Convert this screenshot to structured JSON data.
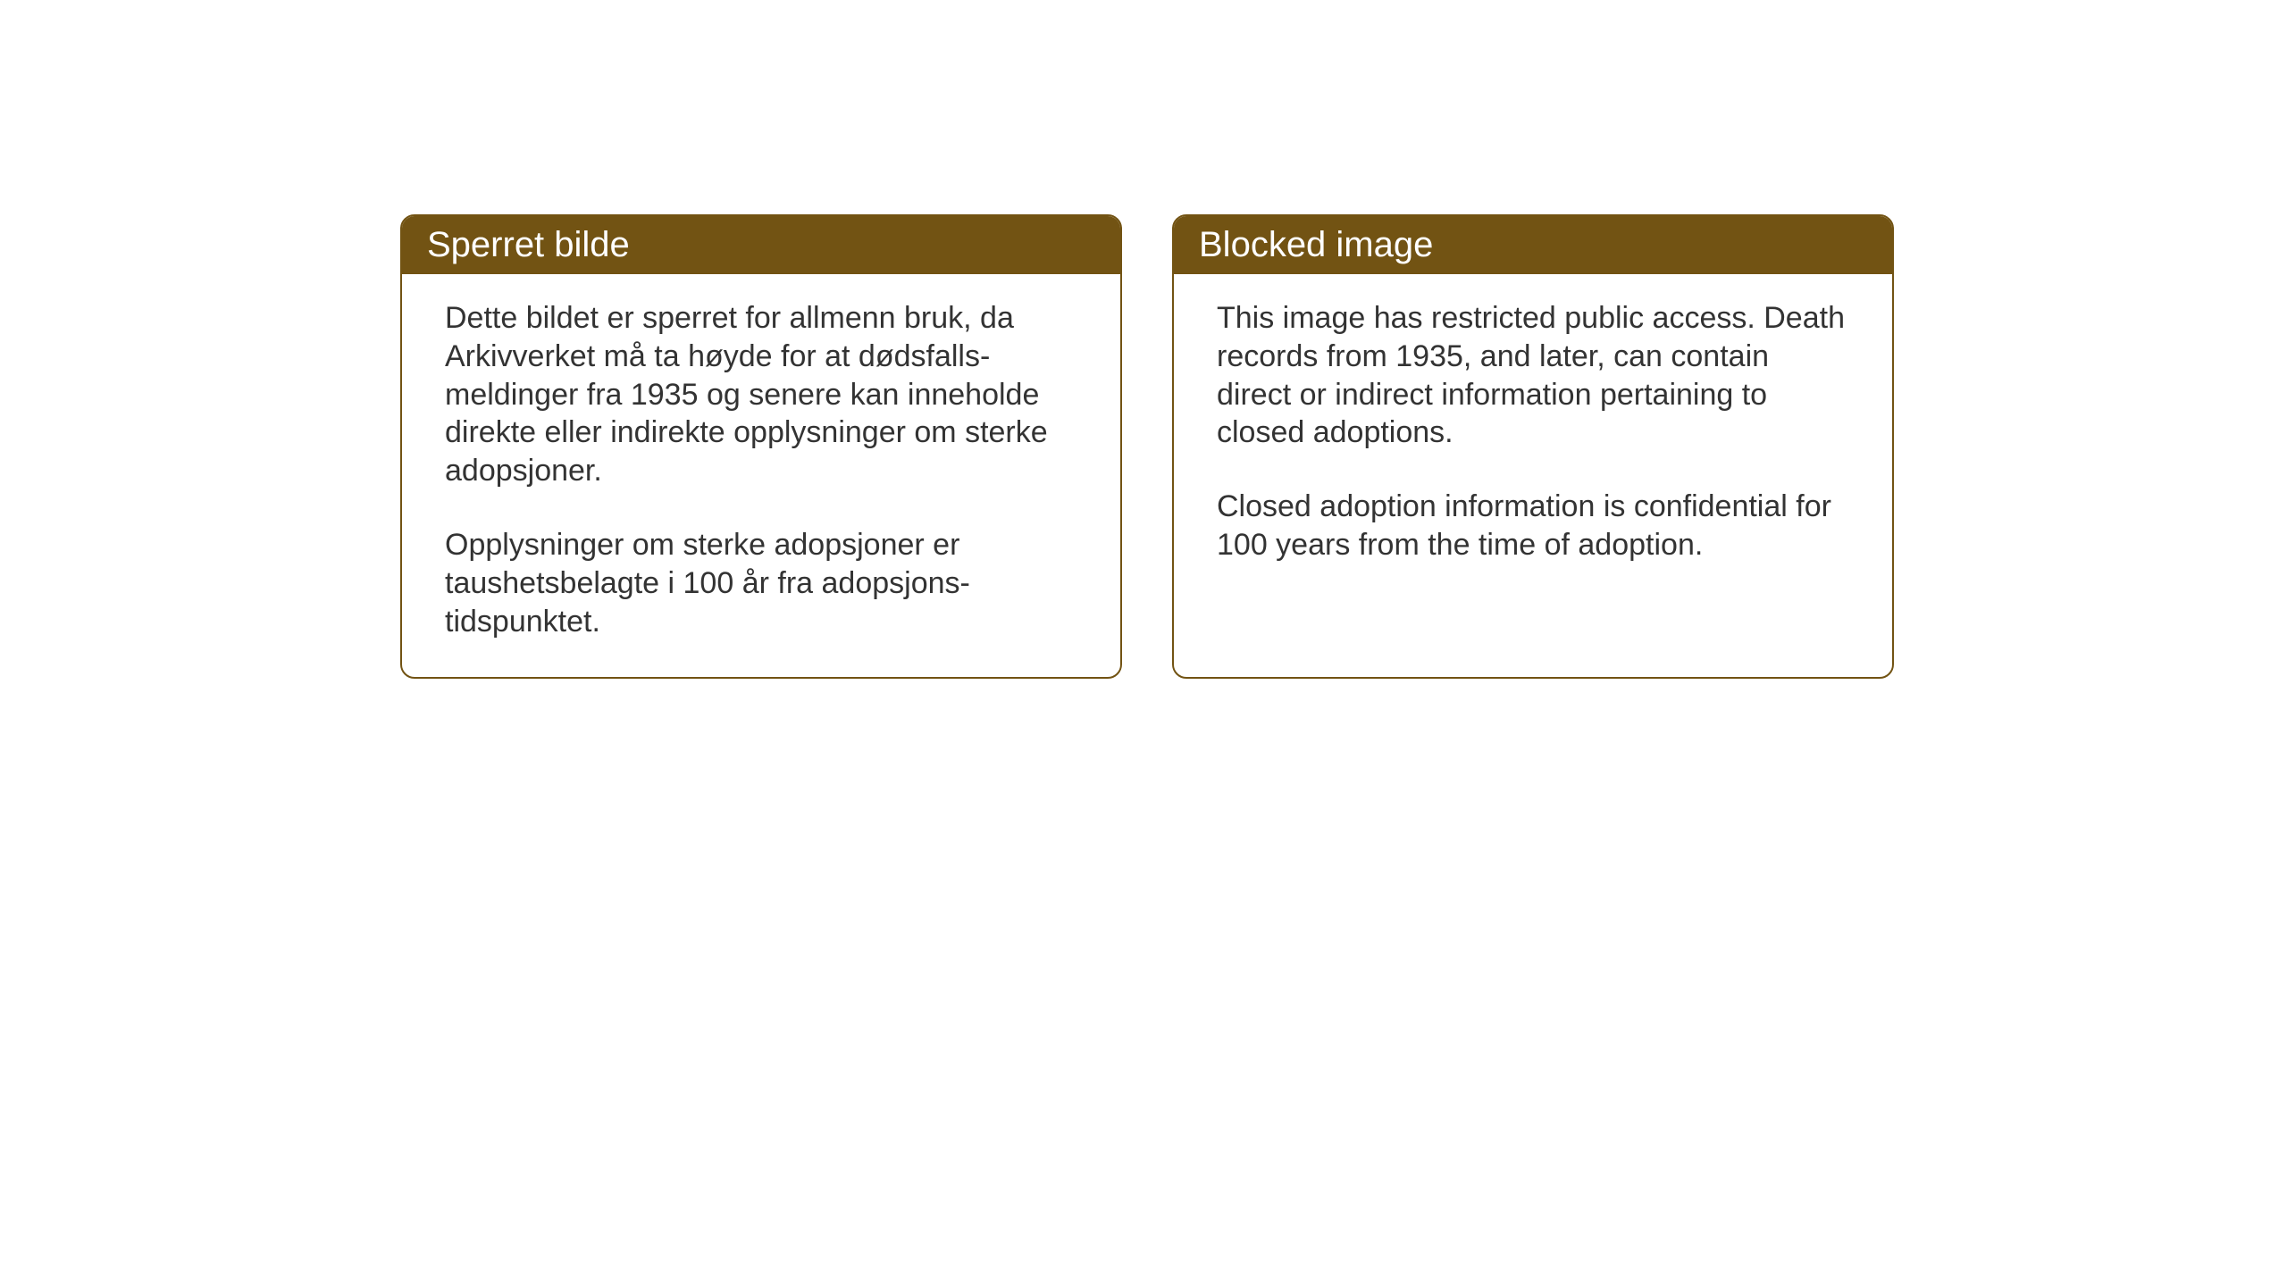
{
  "layout": {
    "background_color": "#ffffff",
    "card_border_color": "#725313",
    "card_border_radius": 16,
    "header_background": "#725313",
    "header_text_color": "#ffffff",
    "body_text_color": "#333333",
    "header_fontsize": 40,
    "body_fontsize": 34
  },
  "cards": {
    "norwegian": {
      "title": "Sperret bilde",
      "paragraph1": "Dette bildet er sperret for allmenn bruk, da Arkivverket må ta høyde for at dødsfalls-meldinger fra 1935 og senere kan inneholde direkte eller indirekte opplysninger om sterke adopsjoner.",
      "paragraph2": "Opplysninger om sterke adopsjoner er taushetsbelagte i 100 år fra adopsjons-tidspunktet."
    },
    "english": {
      "title": "Blocked image",
      "paragraph1": "This image has restricted public access. Death records from 1935, and later, can contain direct or indirect information pertaining to closed adoptions.",
      "paragraph2": "Closed adoption information is confidential for 100 years from the time of adoption."
    }
  }
}
